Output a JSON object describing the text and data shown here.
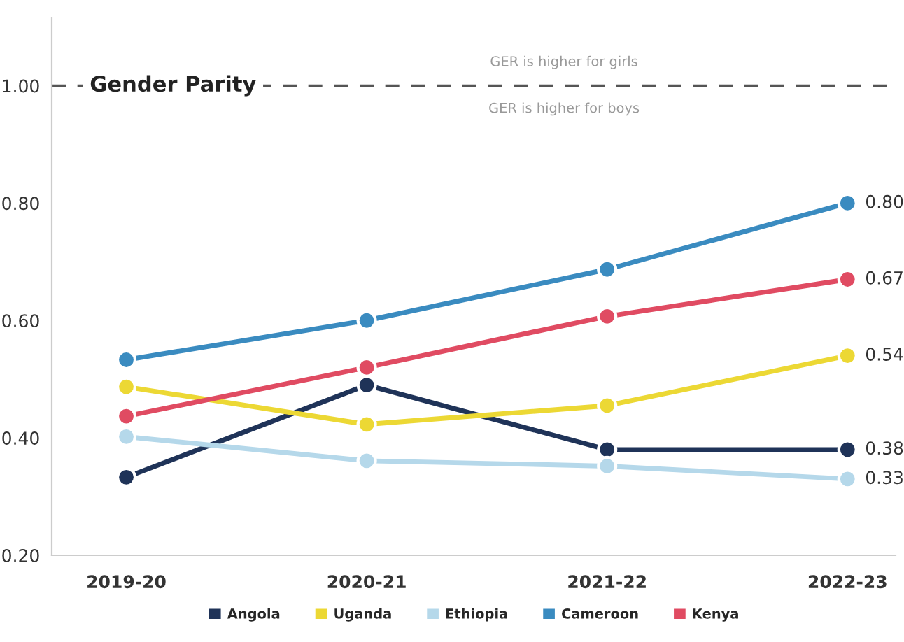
{
  "chart_data": {
    "type": "line",
    "categories": [
      "2019-20",
      "2020-21",
      "2021-22",
      "2022-23"
    ],
    "series": [
      {
        "name": "Angola",
        "color": "#1f3358",
        "values": [
          0.333,
          0.49,
          0.38,
          0.38
        ],
        "value_labels": [
          null,
          null,
          null,
          "0.38"
        ]
      },
      {
        "name": "Uganda",
        "color": "#ecd834",
        "values": [
          0.487,
          0.423,
          0.455,
          0.54
        ],
        "value_labels": [
          null,
          null,
          null,
          "0.54"
        ]
      },
      {
        "name": "Ethiopia",
        "color": "#b5d8ea",
        "values": [
          0.402,
          0.361,
          0.352,
          0.33
        ],
        "value_labels": [
          null,
          null,
          null,
          "0.33"
        ]
      },
      {
        "name": "Cameroon",
        "color": "#3a8bc0",
        "values": [
          0.533,
          0.6,
          0.687,
          0.8
        ],
        "value_labels": [
          null,
          null,
          null,
          "0.80"
        ]
      },
      {
        "name": "Kenya",
        "color": "#e04b62",
        "values": [
          0.437,
          0.52,
          0.607,
          0.67
        ],
        "value_labels": [
          null,
          null,
          null,
          "0.67"
        ]
      }
    ],
    "ylim": [
      0.2,
      1.115
    ],
    "yticks": [
      {
        "value": 0.2,
        "label": "0.20"
      },
      {
        "value": 0.4,
        "label": "0.40"
      },
      {
        "value": 0.6,
        "label": "0.60"
      },
      {
        "value": 0.8,
        "label": "0.80"
      },
      {
        "value": 1.0,
        "label": "1.00"
      }
    ],
    "ref_lines": [
      {
        "axis": "y",
        "value": 1.0,
        "label": "Gender Parity",
        "color": "#555555",
        "line_style": "dashed"
      }
    ],
    "annotations": [
      "GER is higher for girls",
      "GER is higher for boys"
    ],
    "marker": "circle",
    "line_style": "solid",
    "grid": false,
    "legend": "bottom"
  }
}
